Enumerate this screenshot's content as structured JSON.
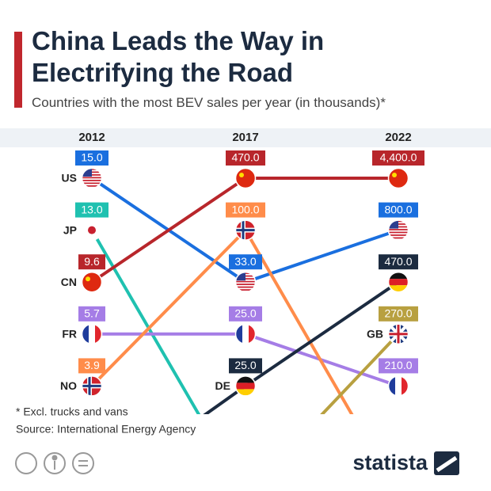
{
  "chart_data": {
    "type": "bump",
    "title": "China Leads the Way in Electrifying the Road",
    "subtitle": "Countries with the most BEV sales per year (in thousands)*",
    "categories": [
      "2012",
      "2017",
      "2022"
    ],
    "series": [
      {
        "name": "US",
        "color": "#1a6fdf",
        "values": [
          15.0,
          33.0,
          800.0
        ],
        "value_labels": [
          "15.0",
          "33.0",
          "800.0"
        ]
      },
      {
        "name": "JP",
        "color": "#1fc1b0",
        "values": [
          13.0,
          null,
          null
        ],
        "value_labels": [
          "13.0",
          null,
          null
        ]
      },
      {
        "name": "CN",
        "color": "#b8262b",
        "values": [
          9.6,
          470.0,
          4400.0
        ],
        "value_labels": [
          "9.6",
          "470.0",
          "4,400.0"
        ]
      },
      {
        "name": "FR",
        "color": "#a57de6",
        "values": [
          5.7,
          25.0,
          210.0
        ],
        "value_labels": [
          "5.7",
          "25.0",
          "210.0"
        ]
      },
      {
        "name": "NO",
        "color": "#ff8c4a",
        "values": [
          3.9,
          100.0,
          null
        ],
        "value_labels": [
          "3.9",
          "100.0",
          null
        ]
      },
      {
        "name": "DE",
        "color": "#1c2b40",
        "values": [
          null,
          25.0,
          470.0
        ],
        "value_labels": [
          null,
          "25.0",
          "470.0"
        ]
      },
      {
        "name": "GB",
        "color": "#b8a040",
        "values": [
          null,
          null,
          270.0
        ],
        "value_labels": [
          null,
          null,
          "270.0"
        ]
      }
    ],
    "note": "* Excl. trucks and vans",
    "source": "Source: International Energy Agency",
    "brand": "statista"
  }
}
